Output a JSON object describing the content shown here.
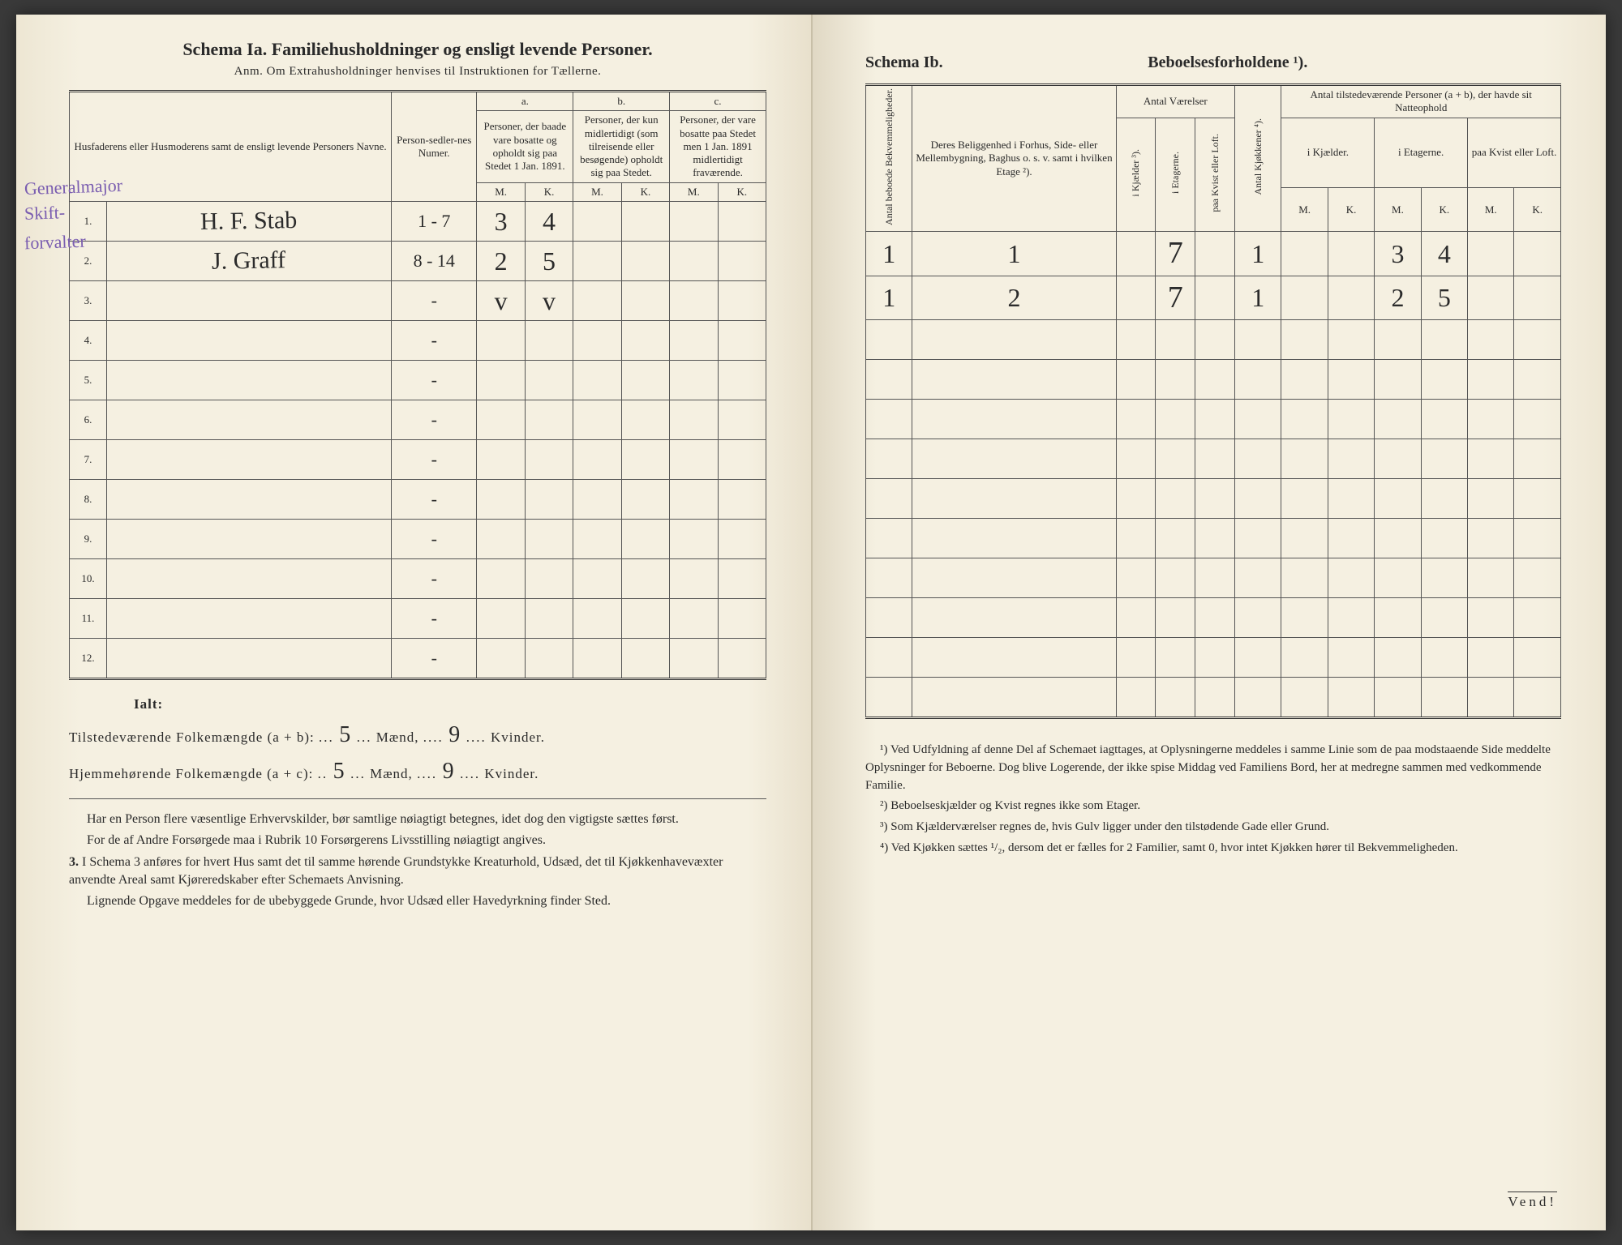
{
  "left": {
    "title": "Schema Ia.   Familiehusholdninger og ensligt levende Personer.",
    "subtitle": "Anm.  Om Extrahusholdninger henvises til Instruktionen for Tællerne.",
    "col_name": "Husfaderens eller Husmoderens samt de ensligt levende Personers Navne.",
    "col_personsedler": "Person-sedler-nes Numer.",
    "col_a": "a.",
    "col_a_desc": "Personer, der baade vare bosatte og opholdt sig paa Stedet 1 Jan. 1891.",
    "col_b": "b.",
    "col_b_desc": "Personer, der kun midlertidigt (som tilreisende eller besøgende) opholdt sig paa Stedet.",
    "col_c": "c.",
    "col_c_desc": "Personer, der vare bosatte paa Stedet men 1 Jan. 1891 midlertidigt fraværende.",
    "M": "M.",
    "K": "K.",
    "margin1": "Generalmajor",
    "margin2": "Skift-",
    "margin3": "forvalter",
    "rows": [
      {
        "n": "1.",
        "name": "H. F. Stab",
        "sedler": "1 - 7",
        "aM": "3",
        "aK": "4",
        "bM": "",
        "bK": "",
        "cM": "",
        "cK": ""
      },
      {
        "n": "2.",
        "name": "J. Graff",
        "sedler": "8 - 14",
        "aM": "2",
        "aK": "5",
        "bM": "",
        "bK": "",
        "cM": "",
        "cK": ""
      },
      {
        "n": "3.",
        "name": "",
        "sedler": "-",
        "aM": "v",
        "aK": "v",
        "bM": "",
        "bK": "",
        "cM": "",
        "cK": ""
      },
      {
        "n": "4.",
        "name": "",
        "sedler": "-",
        "aM": "",
        "aK": "",
        "bM": "",
        "bK": "",
        "cM": "",
        "cK": ""
      },
      {
        "n": "5.",
        "name": "",
        "sedler": "-",
        "aM": "",
        "aK": "",
        "bM": "",
        "bK": "",
        "cM": "",
        "cK": ""
      },
      {
        "n": "6.",
        "name": "",
        "sedler": "-",
        "aM": "",
        "aK": "",
        "bM": "",
        "bK": "",
        "cM": "",
        "cK": ""
      },
      {
        "n": "7.",
        "name": "",
        "sedler": "-",
        "aM": "",
        "aK": "",
        "bM": "",
        "bK": "",
        "cM": "",
        "cK": ""
      },
      {
        "n": "8.",
        "name": "",
        "sedler": "-",
        "aM": "",
        "aK": "",
        "bM": "",
        "bK": "",
        "cM": "",
        "cK": ""
      },
      {
        "n": "9.",
        "name": "",
        "sedler": "-",
        "aM": "",
        "aK": "",
        "bM": "",
        "bK": "",
        "cM": "",
        "cK": ""
      },
      {
        "n": "10.",
        "name": "",
        "sedler": "-",
        "aM": "",
        "aK": "",
        "bM": "",
        "bK": "",
        "cM": "",
        "cK": ""
      },
      {
        "n": "11.",
        "name": "",
        "sedler": "-",
        "aM": "",
        "aK": "",
        "bM": "",
        "bK": "",
        "cM": "",
        "cK": ""
      },
      {
        "n": "12.",
        "name": "",
        "sedler": "-",
        "aM": "",
        "aK": "",
        "bM": "",
        "bK": "",
        "cM": "",
        "cK": ""
      }
    ],
    "ialt": "Ialt:",
    "tilstede": "Tilstedeværende Folkemængde (a + b):",
    "hjemme": "Hjemmehørende Folkemængde (a + c):",
    "maend": "Mænd,",
    "kvinder": "Kvinder.",
    "val_tM": "5",
    "val_tK": "9",
    "val_hM": "5",
    "val_hK": "9",
    "para1": "Har en Person flere væsentlige Erhvervskilder, bør samtlige nøiagtigt betegnes, idet dog den vigtigste sættes først.",
    "para2": "For de af Andre Forsørgede maa i Rubrik 10 Forsørgerens Livsstilling nøiagtigt angives.",
    "para3_num": "3.",
    "para3": "I Schema 3 anføres for hvert Hus samt det til samme hørende Grundstykke Kreaturhold, Udsæd, det til Kjøkkenhavevæxter anvendte Areal samt Kjøreredskaber efter Schemaets Anvisning.",
    "para4": "Lignende Opgave meddeles for de ubebyggede Grunde, hvor Udsæd eller Havedyrkning finder Sted."
  },
  "right": {
    "title_a": "Schema Ib.",
    "title_b": "Beboelsesforholdene ¹).",
    "col1": "Antal beboede Bekvemmeligheder.",
    "col2": "Deres Beliggenhed i Forhus, Side- eller Mellembygning, Baghus o. s. v. samt i hvilken Etage ²).",
    "col3": "Antal Værelser",
    "col3a": "i Kjælder ³).",
    "col3b": "i Etagerne.",
    "col3c": "paa Kvist eller Loft.",
    "col4": "Antal Kjøkkener ⁴).",
    "col5": "Antal tilstedeværende Personer (a + b), der havde sit Natteophold",
    "col5a": "i Kjælder.",
    "col5b": "i Etagerne.",
    "col5c": "paa Kvist eller Loft.",
    "M": "M.",
    "K": "K.",
    "rows": [
      {
        "a": "1",
        "b": "1",
        "v1": "",
        "v2": "7",
        "v3": "",
        "kj": "1",
        "nM1": "",
        "nK1": "",
        "nM2": "3",
        "nK2": "4",
        "nM3": "",
        "nK3": ""
      },
      {
        "a": "1",
        "b": "2",
        "v1": "",
        "v2": "7",
        "v3": "",
        "kj": "1",
        "nM1": "",
        "nK1": "",
        "nM2": "2",
        "nK2": "5",
        "nM3": "",
        "nK3": ""
      },
      {
        "a": "",
        "b": "",
        "v1": "",
        "v2": "",
        "v3": "",
        "kj": "",
        "nM1": "",
        "nK1": "",
        "nM2": "",
        "nK2": "",
        "nM3": "",
        "nK3": ""
      },
      {
        "a": "",
        "b": "",
        "v1": "",
        "v2": "",
        "v3": "",
        "kj": "",
        "nM1": "",
        "nK1": "",
        "nM2": "",
        "nK2": "",
        "nM3": "",
        "nK3": ""
      },
      {
        "a": "",
        "b": "",
        "v1": "",
        "v2": "",
        "v3": "",
        "kj": "",
        "nM1": "",
        "nK1": "",
        "nM2": "",
        "nK2": "",
        "nM3": "",
        "nK3": ""
      },
      {
        "a": "",
        "b": "",
        "v1": "",
        "v2": "",
        "v3": "",
        "kj": "",
        "nM1": "",
        "nK1": "",
        "nM2": "",
        "nK2": "",
        "nM3": "",
        "nK3": ""
      },
      {
        "a": "",
        "b": "",
        "v1": "",
        "v2": "",
        "v3": "",
        "kj": "",
        "nM1": "",
        "nK1": "",
        "nM2": "",
        "nK2": "",
        "nM3": "",
        "nK3": ""
      },
      {
        "a": "",
        "b": "",
        "v1": "",
        "v2": "",
        "v3": "",
        "kj": "",
        "nM1": "",
        "nK1": "",
        "nM2": "",
        "nK2": "",
        "nM3": "",
        "nK3": ""
      },
      {
        "a": "",
        "b": "",
        "v1": "",
        "v2": "",
        "v3": "",
        "kj": "",
        "nM1": "",
        "nK1": "",
        "nM2": "",
        "nK2": "",
        "nM3": "",
        "nK3": ""
      },
      {
        "a": "",
        "b": "",
        "v1": "",
        "v2": "",
        "v3": "",
        "kj": "",
        "nM1": "",
        "nK1": "",
        "nM2": "",
        "nK2": "",
        "nM3": "",
        "nK3": ""
      },
      {
        "a": "",
        "b": "",
        "v1": "",
        "v2": "",
        "v3": "",
        "kj": "",
        "nM1": "",
        "nK1": "",
        "nM2": "",
        "nK2": "",
        "nM3": "",
        "nK3": ""
      },
      {
        "a": "",
        "b": "",
        "v1": "",
        "v2": "",
        "v3": "",
        "kj": "",
        "nM1": "",
        "nK1": "",
        "nM2": "",
        "nK2": "",
        "nM3": "",
        "nK3": ""
      }
    ],
    "fn1": "¹) Ved Udfyldning af denne Del af Schemaet iagttages, at Oplysningerne meddeles i samme Linie som de paa modstaaende Side meddelte Oplysninger for Beboerne. Dog blive Logerende, der ikke spise Middag ved Familiens Bord, her at medregne sammen med vedkommende Familie.",
    "fn2": "²) Beboelseskjælder og Kvist regnes ikke som Etager.",
    "fn3": "³) Som Kjælderværelser regnes de, hvis Gulv ligger under den tilstødende Gade eller Grund.",
    "fn4": "⁴) Ved Kjøkken sættes ¹/₂, dersom det er fælles for 2 Familier, samt 0, hvor intet Kjøkken hører til Bekvemmeligheden.",
    "vend": "Vend!"
  }
}
